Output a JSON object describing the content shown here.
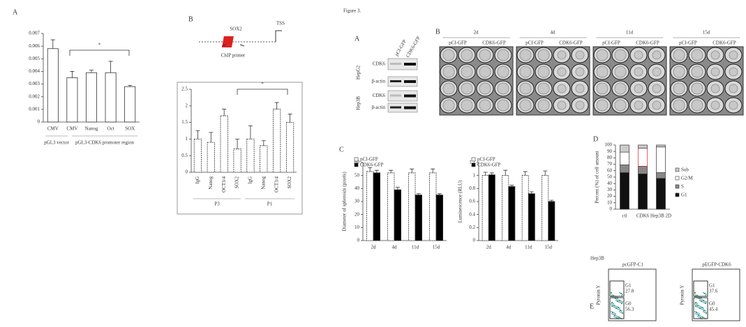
{
  "figure_label": "Figure 3.",
  "chart_data": [
    {
      "type": "bar",
      "panel": "A",
      "categories": [
        "CMV",
        "CMV",
        "Nanog",
        "Oct",
        "SOX"
      ],
      "values": [
        0.0058,
        0.0035,
        0.0039,
        0.0039,
        0.0028
      ],
      "errors": [
        0.0007,
        0.0005,
        0.0002,
        0.0009,
        0.0001
      ],
      "color": "#ffffff",
      "ylim": [
        0,
        0.007
      ],
      "yticks": [
        0,
        0.001,
        0.002,
        0.003,
        0.004,
        0.005,
        0.006,
        0.007
      ],
      "group_labels": [
        "pGL3 vector",
        "pGL3-CDK6 promoter region"
      ],
      "annotation": "*"
    },
    {
      "type": "bar",
      "panel": "B",
      "categories": [
        "IgG",
        "Nanog",
        "OCT3/4",
        "SOX2",
        "IgG",
        "Nanog",
        "OCT3/4",
        "SOX2"
      ],
      "values": [
        1.0,
        0.9,
        1.7,
        0.7,
        1.0,
        0.8,
        1.9,
        1.5
      ],
      "errors": [
        0.25,
        0.3,
        0.2,
        0.3,
        0.4,
        0.15,
        0.2,
        0.25
      ],
      "color": "#ffffff",
      "ylim": [
        0,
        2.5
      ],
      "yticks": [
        0,
        0.5,
        1,
        1.5,
        2,
        2.5
      ],
      "group_labels": [
        "P3",
        "P1"
      ],
      "annotation": "*"
    },
    {
      "type": "grouped_bar",
      "panel": "C",
      "categories": [
        "2d",
        "4d",
        "11d",
        "15d"
      ],
      "y_label": "Diameter of spheroids (pixels)",
      "series": [
        {
          "name": "pCI-GFP",
          "color": "#ffffff",
          "values": [
            53,
            52,
            52,
            52
          ],
          "errors": [
            3,
            2,
            3,
            3
          ]
        },
        {
          "name": "CDK6-GFP",
          "color": "#000000",
          "values": [
            52,
            39,
            35,
            35
          ],
          "errors": [
            2,
            2,
            1,
            1
          ]
        }
      ],
      "ylim": [
        0,
        60
      ],
      "yticks": [
        0,
        10,
        20,
        30,
        40,
        50,
        60
      ]
    },
    {
      "type": "grouped_bar",
      "categories": [
        "2d",
        "4d",
        "11d",
        "15d"
      ],
      "y_label": "Luminescence (RLU)",
      "series": [
        {
          "name": "pCI-GFP",
          "color": "#ffffff",
          "values": [
            1,
            1,
            1,
            1
          ],
          "errors": [
            0.05,
            0.08,
            0.06,
            0.07
          ]
        },
        {
          "name": "CDK6-GFP",
          "color": "#000000",
          "values": [
            1.01,
            0.83,
            0.72,
            0.6
          ],
          "errors": [
            0.03,
            0.02,
            0.03,
            0.02
          ]
        }
      ],
      "ylim": [
        0,
        1.2
      ],
      "yticks": [
        0,
        0.2,
        0.4,
        0.6,
        0.8,
        1,
        1.2
      ]
    },
    {
      "type": "stacked_bar",
      "panel": "D",
      "categories": [
        "ctl",
        "CDK6",
        "Hep3B 2D"
      ],
      "y_label": "Percent (%) of cell amount",
      "series": [
        {
          "name": "G1",
          "color": "#111111",
          "values": [
            57,
            55,
            48
          ]
        },
        {
          "name": "S",
          "color": "#888888",
          "values": [
            12,
            12,
            9
          ]
        },
        {
          "name": "G2/M",
          "color": "#ffffff",
          "values": [
            20,
            28,
            40
          ]
        },
        {
          "name": "Sub",
          "color": "#cccccc",
          "values": [
            11,
            5,
            3
          ]
        }
      ],
      "ylim": [
        0,
        100
      ],
      "yticks": [
        0,
        10,
        20,
        30,
        40,
        50,
        60,
        70,
        80,
        90,
        100
      ]
    }
  ],
  "diagram_b": {
    "gene": "SOX2",
    "tss": "TSS",
    "primer": "ChIP primer"
  },
  "blot": {
    "panel": "A",
    "columns": [
      "pCI-GFP",
      "CDK6-GFP"
    ],
    "cell_lines": [
      "HepG2",
      "Hep3B"
    ],
    "bands": [
      "CDK6",
      "β-actin",
      "CDK6",
      "β-actin"
    ]
  },
  "spheroids": {
    "panel": "B",
    "days": [
      "2d",
      "4d",
      "11d",
      "15d"
    ],
    "conditions": [
      "pCI-GFP",
      "CDK6-GFP"
    ]
  },
  "flow": {
    "panel": "E",
    "title": "Hep3B",
    "y_label": "Pyronin Y",
    "plots": [
      {
        "title": "pcGFP-C1",
        "gates": [
          {
            "label": "G1",
            "value": 27.8
          },
          {
            "label": "G0",
            "value": 56.3
          }
        ]
      },
      {
        "title": "pEGFP-CDK6",
        "gates": [
          {
            "label": "G1",
            "value": 37.6
          },
          {
            "label": "G0",
            "value": 45.4
          }
        ]
      }
    ]
  }
}
